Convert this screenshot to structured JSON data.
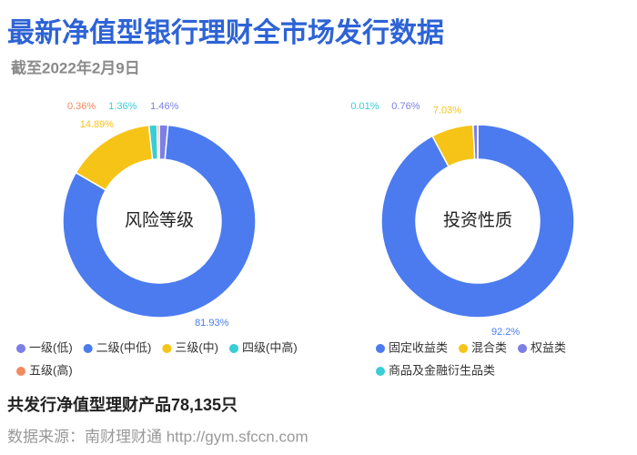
{
  "header": {
    "title": "最新净值型银行理财全市场发行数据",
    "subtitle": "截至2022年2月9日"
  },
  "chart_data": [
    {
      "type": "donut",
      "title": "风险等级",
      "categories": [
        "一级(低)",
        "二级(中低)",
        "三级(中)",
        "四级(中高)",
        "五级(高)"
      ],
      "values": [
        1.46,
        81.93,
        14.89,
        1.36,
        0.36
      ],
      "value_labels": [
        "1.46%",
        "81.93%",
        "14.89%",
        "1.36%",
        "0.36%"
      ],
      "colors": [
        "#7b7fe6",
        "#4b7bef",
        "#f6c417",
        "#39cdd6",
        "#f28a5f"
      ]
    },
    {
      "type": "donut",
      "title": "投资性质",
      "categories": [
        "固定收益类",
        "混合类",
        "权益类",
        "商品及金融衍生品类"
      ],
      "values": [
        92.2,
        7.03,
        0.76,
        0.01
      ],
      "value_labels": [
        "92.2%",
        "7.03%",
        "0.76%",
        "0.01%"
      ],
      "colors": [
        "#4b7bef",
        "#f6c417",
        "#7b7fe6",
        "#39cdd6"
      ]
    }
  ],
  "footer": {
    "total": "共发行净值型理财产品78,135只",
    "source": "数据来源：南财理财通 http://gym.sfccn.com"
  }
}
